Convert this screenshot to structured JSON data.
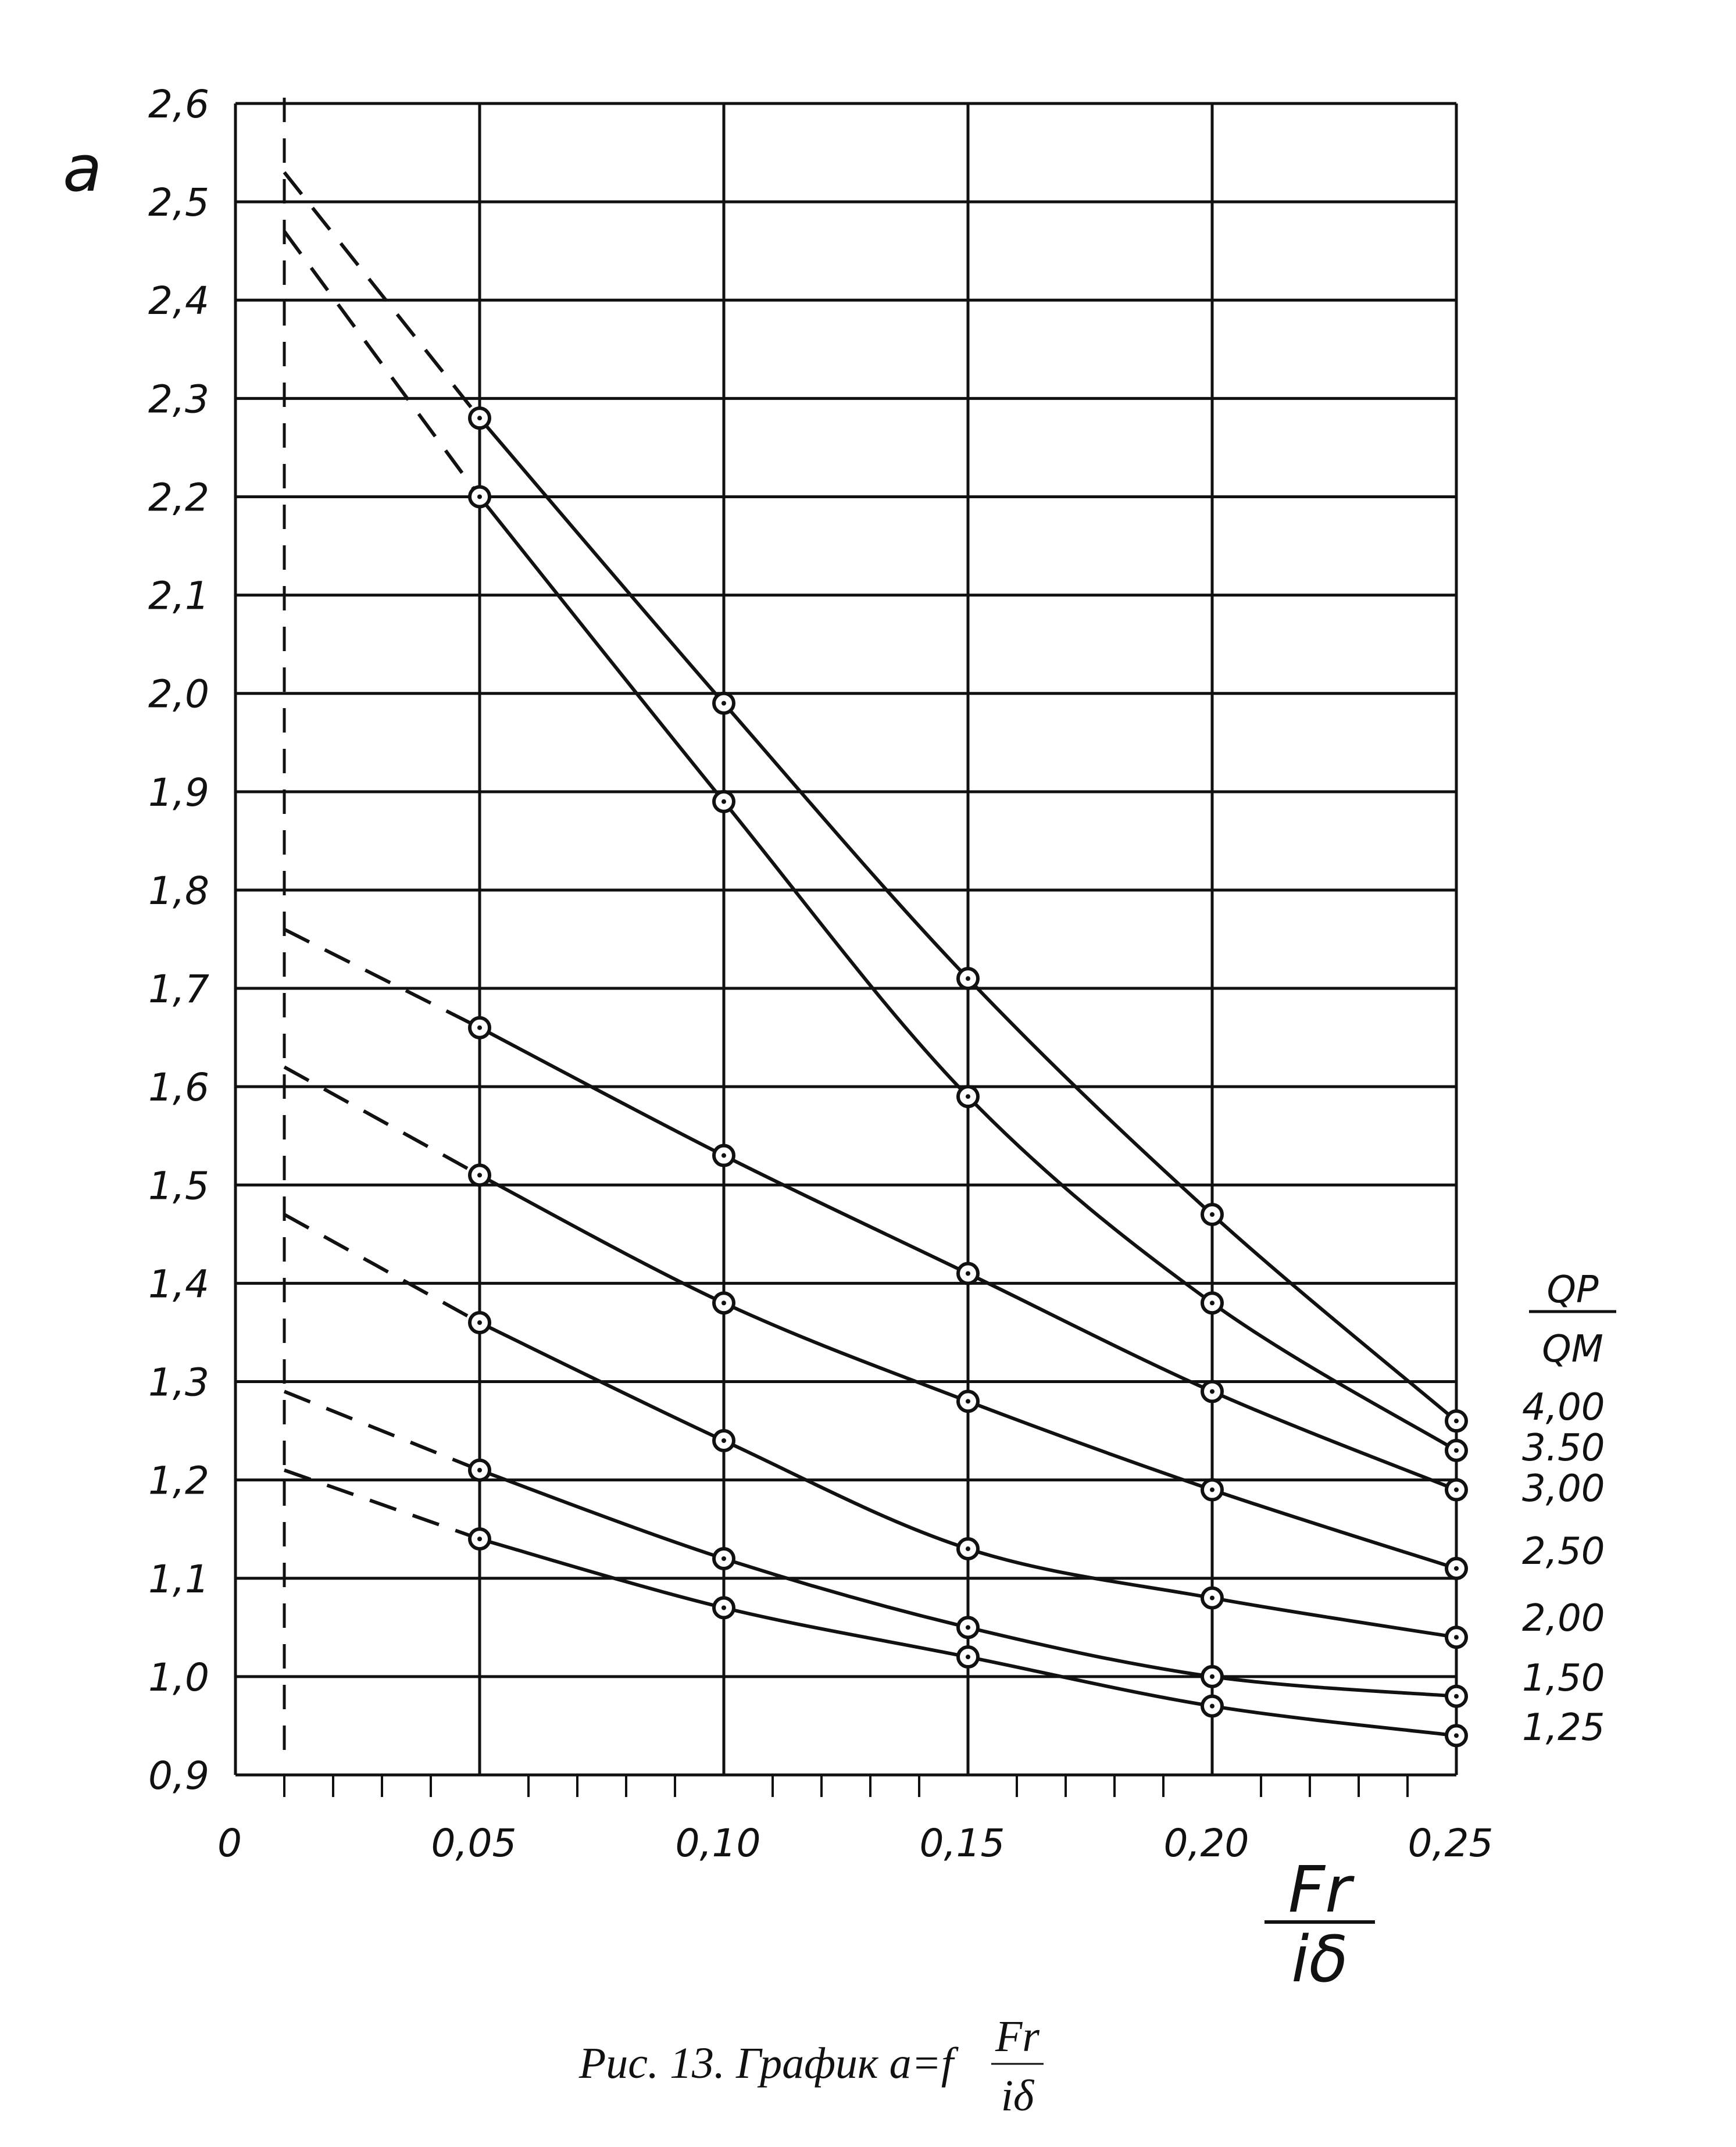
{
  "chart_data": {
    "type": "line",
    "ylabel": "a",
    "xlabel": {
      "numerator": "Fr",
      "denominator": "iδ"
    },
    "xlim": [
      0,
      0.25
    ],
    "ylim": [
      0.9,
      2.6
    ],
    "grid": true,
    "xticks": [
      {
        "value": 0,
        "label": "0"
      },
      {
        "value": 0.05,
        "label": "0,05"
      },
      {
        "value": 0.1,
        "label": "0,10"
      },
      {
        "value": 0.15,
        "label": "0,15"
      },
      {
        "value": 0.2,
        "label": "0,20"
      },
      {
        "value": 0.25,
        "label": "0,25"
      }
    ],
    "yticks": [
      {
        "value": 0.9,
        "label": "0,9"
      },
      {
        "value": 1.0,
        "label": "1,0"
      },
      {
        "value": 1.1,
        "label": "1,1"
      },
      {
        "value": 1.2,
        "label": "1,2"
      },
      {
        "value": 1.3,
        "label": "1,3"
      },
      {
        "value": 1.4,
        "label": "1,4"
      },
      {
        "value": 1.5,
        "label": "1,5"
      },
      {
        "value": 1.6,
        "label": "1,6"
      },
      {
        "value": 1.7,
        "label": "1,7"
      },
      {
        "value": 1.8,
        "label": "1,8"
      },
      {
        "value": 1.9,
        "label": "1,9"
      },
      {
        "value": 2.0,
        "label": "2,0"
      },
      {
        "value": 2.1,
        "label": "2,1"
      },
      {
        "value": 2.2,
        "label": "2,2"
      },
      {
        "value": 2.3,
        "label": "2,3"
      },
      {
        "value": 2.4,
        "label": "2,4"
      },
      {
        "value": 2.5,
        "label": "2,5"
      },
      {
        "value": 2.6,
        "label": "2,6"
      }
    ],
    "legend_title": {
      "numerator": "QP",
      "denominator": "QM"
    },
    "legend_position": "right",
    "dashed_reference_x": 0.01,
    "series": [
      {
        "name": "4,00",
        "extrapolated_start": {
          "x": 0.01,
          "y": 2.53
        },
        "x": [
          0.05,
          0.1,
          0.15,
          0.2,
          0.25
        ],
        "y": [
          2.28,
          1.99,
          1.71,
          1.47,
          1.26
        ]
      },
      {
        "name": "3.50",
        "extrapolated_start": {
          "x": 0.01,
          "y": 2.47
        },
        "x": [
          0.05,
          0.1,
          0.15,
          0.2,
          0.25
        ],
        "y": [
          2.2,
          1.89,
          1.59,
          1.38,
          1.23
        ]
      },
      {
        "name": "3,00",
        "extrapolated_start": {
          "x": 0.01,
          "y": 1.76
        },
        "x": [
          0.05,
          0.1,
          0.15,
          0.2,
          0.25
        ],
        "y": [
          1.66,
          1.53,
          1.41,
          1.29,
          1.19
        ]
      },
      {
        "name": "2,50",
        "extrapolated_start": {
          "x": 0.01,
          "y": 1.62
        },
        "x": [
          0.05,
          0.1,
          0.15,
          0.2,
          0.25
        ],
        "y": [
          1.51,
          1.38,
          1.28,
          1.19,
          1.11
        ]
      },
      {
        "name": "2,00",
        "extrapolated_start": {
          "x": 0.01,
          "y": 1.47
        },
        "x": [
          0.05,
          0.1,
          0.15,
          0.2,
          0.25
        ],
        "y": [
          1.36,
          1.24,
          1.13,
          1.08,
          1.04
        ]
      },
      {
        "name": "1,50",
        "extrapolated_start": {
          "x": 0.01,
          "y": 1.29
        },
        "x": [
          0.05,
          0.1,
          0.15,
          0.2,
          0.25
        ],
        "y": [
          1.21,
          1.12,
          1.05,
          1.0,
          0.98
        ]
      },
      {
        "name": "1,25",
        "extrapolated_start": {
          "x": 0.01,
          "y": 1.21
        },
        "x": [
          0.05,
          0.1,
          0.15,
          0.2,
          0.25
        ],
        "y": [
          1.14,
          1.07,
          1.02,
          0.97,
          0.94
        ]
      }
    ]
  },
  "caption": {
    "prefix": "Рис. 13. График a=f",
    "frac_numerator": "Fr",
    "frac_denominator": "iδ"
  }
}
